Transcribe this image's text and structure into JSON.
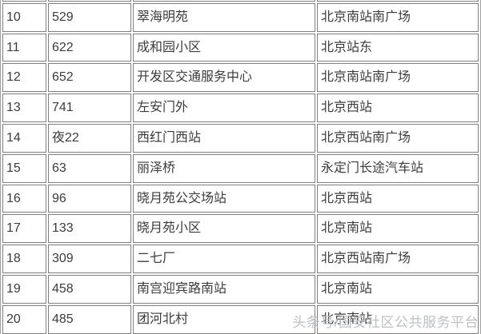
{
  "table": {
    "rows": [
      {
        "index": "10",
        "line": "529",
        "station": "翠海明苑",
        "destination": "北京南站南广场"
      },
      {
        "index": "11",
        "line": "622",
        "station": "成和园小区",
        "destination": "北京站东"
      },
      {
        "index": "12",
        "line": "652",
        "station": "开发区交通服务中心",
        "destination": "北京南站南广场"
      },
      {
        "index": "13",
        "line": "741",
        "station": "左安门外",
        "destination": "北京西站"
      },
      {
        "index": "14",
        "line": "夜22",
        "station": "西红门西站",
        "destination": "北京西站南广场"
      },
      {
        "index": "15",
        "line": "63",
        "station": "丽泽桥",
        "destination": "永定门长途汽车站"
      },
      {
        "index": "16",
        "line": "96",
        "station": "晓月苑公交场站",
        "destination": "北京西站"
      },
      {
        "index": "17",
        "line": "133",
        "station": "晓月苑小区",
        "destination": "北京南站"
      },
      {
        "index": "18",
        "line": "309",
        "station": "二七厂",
        "destination": "北京西站南广场"
      },
      {
        "index": "19",
        "line": "458",
        "station": "南宫迎宾路南站",
        "destination": "北京南站"
      },
      {
        "index": "20",
        "line": "485",
        "station": "团河北村",
        "destination": "北京南站"
      }
    ]
  },
  "watermark": {
    "text": "头条号/国安社区公共服务平台"
  },
  "colors": {
    "background": "#ffffff",
    "text": "#3c3c3c",
    "cell_border": "#7f7f7f",
    "outer_border": "#a0a0a0",
    "watermark": "#bcc0c4"
  }
}
